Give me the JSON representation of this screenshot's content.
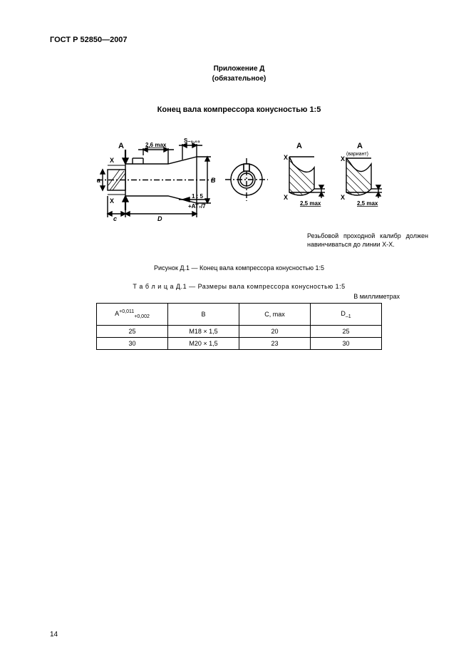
{
  "doc_header": "ГОСТ Р 52850—2007",
  "appendix_line1": "Приложение Д",
  "appendix_line2": "(обязательное)",
  "figure_title": "Конец вала компрессора конусностью 1:5",
  "note_text": "Резьбовой проходной калибр должен навинчиваться до линии Х-Х.",
  "figure_caption": "Рисунок Д.1 —  Конец вала компрессора конусностью 1:5",
  "table_caption": "Т а б л и ц а   Д.1 — Размеры вала компрессора конусностью 1:5",
  "unit_label": "В миллиметрах",
  "table": {
    "columns": [
      {
        "html": "A<span class='sup'>+0,011</span><span class='sub'>+0,002</span>"
      },
      {
        "html": "B"
      },
      {
        "html": "C, max"
      },
      {
        "html": "D<span class='sub'>–1</span>"
      }
    ],
    "rows": [
      [
        "25",
        "M18 × 1,5",
        "20",
        "25"
      ],
      [
        "30",
        "M20 × 1,5",
        "23",
        "30"
      ]
    ]
  },
  "page_number": "14",
  "diagram": {
    "labels": {
      "A1": "A",
      "A2": "A",
      "A3": "A",
      "variant": "(вариант)",
      "X": "X",
      "dim26max": "2,6 max",
      "dimS": "S-0,03",
      "dim25max": "2,5 max",
      "ratio": "1 : 5",
      "tol": "+AT₇/7",
      "a_small": "a",
      "b_small": "b",
      "c_small": "c",
      "d_small": "D"
    },
    "colors": {
      "stroke": "#000000",
      "fill_bg": "#ffffff"
    },
    "line_width": 1.4
  }
}
